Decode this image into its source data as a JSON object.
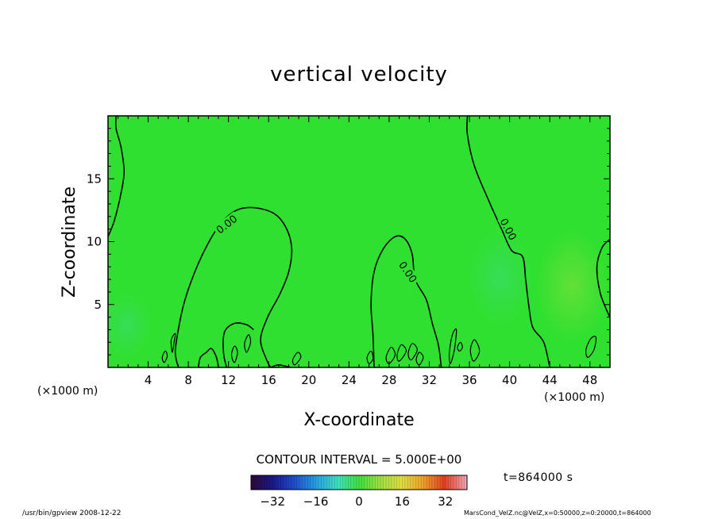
{
  "chart_data": {
    "type": "contour",
    "title": "vertical velocity",
    "xlabel": "X-coordinate",
    "ylabel": "Z-coordinate",
    "x_unit_left": "(×1000 m)",
    "x_unit_right": "(×1000 m)",
    "xlim": [
      0,
      50
    ],
    "ylim": [
      0,
      20
    ],
    "x_ticks": [
      4,
      8,
      12,
      16,
      20,
      24,
      28,
      32,
      36,
      40,
      44,
      48
    ],
    "y_ticks": [
      5,
      10,
      15
    ],
    "contour_interval_text": "CONTOUR INTERVAL = 5.000E+00",
    "contour_label": "0.00",
    "time_label": "t=864000 s",
    "colorbar": {
      "min": -40,
      "max": 40,
      "ticks": [
        -32,
        -16,
        0,
        16,
        32
      ],
      "colors": [
        "#2a0a3a",
        "#1a1a8c",
        "#1e4fd0",
        "#2aa0e0",
        "#40e0c0",
        "#40e040",
        "#a0e040",
        "#e0e040",
        "#f0a030",
        "#e04020",
        "#f0a0b0"
      ]
    },
    "background_color": "#30e030",
    "contour_paths": [
      [
        [
          0.0,
          10.4
        ],
        [
          0.6,
          11.6
        ],
        [
          1.2,
          13.5
        ],
        [
          1.6,
          15.5
        ],
        [
          1.3,
          17.5
        ],
        [
          0.8,
          19.0
        ],
        [
          0.8,
          20.0
        ]
      ],
      [
        [
          7.0,
          0.0
        ],
        [
          6.7,
          1.2
        ],
        [
          7.0,
          3.0
        ],
        [
          7.6,
          5.2
        ],
        [
          8.6,
          7.5
        ],
        [
          9.8,
          9.6
        ],
        [
          11.2,
          11.4
        ],
        [
          12.8,
          12.5
        ],
        [
          14.6,
          12.7
        ],
        [
          16.6,
          12.2
        ],
        [
          17.8,
          11.0
        ],
        [
          18.3,
          9.4
        ],
        [
          18.0,
          7.6
        ],
        [
          17.1,
          5.8
        ],
        [
          15.9,
          4.0
        ],
        [
          15.2,
          2.2
        ],
        [
          15.8,
          0.6
        ],
        [
          16.2,
          0.0
        ]
      ],
      [
        [
          26.5,
          0.0
        ],
        [
          26.4,
          2.5
        ],
        [
          26.2,
          5.0
        ],
        [
          26.5,
          7.6
        ],
        [
          27.4,
          9.4
        ],
        [
          28.6,
          10.4
        ],
        [
          29.6,
          10.2
        ],
        [
          30.3,
          9.0
        ],
        [
          30.6,
          7.0
        ],
        [
          31.7,
          5.4
        ],
        [
          32.3,
          3.5
        ],
        [
          32.9,
          1.8
        ],
        [
          33.2,
          0.0
        ]
      ],
      [
        [
          35.8,
          20.0
        ],
        [
          35.8,
          18.5
        ],
        [
          36.5,
          16.0
        ],
        [
          37.9,
          13.3
        ],
        [
          39.2,
          11.0
        ],
        [
          40.2,
          9.3
        ],
        [
          41.3,
          8.8
        ],
        [
          41.6,
          7.0
        ],
        [
          41.9,
          5.0
        ],
        [
          42.3,
          3.2
        ],
        [
          43.4,
          2.0
        ],
        [
          44.0,
          0.0
        ]
      ],
      [
        [
          50.0,
          10.2
        ],
        [
          49.2,
          9.5
        ],
        [
          48.7,
          8.0
        ],
        [
          49.0,
          6.0
        ],
        [
          49.7,
          4.5
        ],
        [
          50.0,
          4.0
        ]
      ],
      [
        [
          16.2,
          0.0
        ],
        [
          17.0,
          0.2
        ],
        [
          18.2,
          0.0
        ]
      ],
      [
        [
          14.5,
          3.0
        ],
        [
          13.8,
          3.4
        ],
        [
          12.6,
          3.5
        ],
        [
          11.6,
          2.8
        ],
        [
          11.5,
          1.2
        ],
        [
          11.8,
          0.0
        ]
      ],
      [
        [
          9.0,
          0.0
        ],
        [
          9.2,
          0.8
        ],
        [
          9.8,
          1.2
        ],
        [
          10.3,
          1.5
        ],
        [
          10.8,
          0.8
        ],
        [
          11.0,
          0.0
        ]
      ]
    ],
    "contour_loops": [
      [
        [
          47.8,
          0.8
        ],
        [
          48.4,
          1.4
        ],
        [
          48.6,
          2.4
        ],
        [
          48.1,
          2.3
        ],
        [
          47.6,
          1.4
        ]
      ],
      [
        [
          6.4,
          1.2
        ],
        [
          6.6,
          2.1
        ],
        [
          6.7,
          2.7
        ],
        [
          6.3,
          2.2
        ]
      ],
      [
        [
          5.6,
          0.4
        ],
        [
          5.9,
          0.9
        ],
        [
          5.7,
          1.3
        ],
        [
          5.4,
          0.8
        ]
      ],
      [
        [
          13.8,
          1.2
        ],
        [
          14.2,
          2.0
        ],
        [
          14.0,
          2.6
        ],
        [
          13.6,
          1.9
        ]
      ],
      [
        [
          12.6,
          0.4
        ],
        [
          12.9,
          1.2
        ],
        [
          12.6,
          1.7
        ],
        [
          12.3,
          1.0
        ]
      ],
      [
        [
          26.0,
          0.3
        ],
        [
          26.4,
          0.7
        ],
        [
          26.2,
          1.3
        ],
        [
          25.8,
          0.8
        ]
      ],
      [
        [
          28.0,
          0.3
        ],
        [
          28.6,
          1.0
        ],
        [
          28.2,
          1.6
        ],
        [
          27.7,
          0.8
        ]
      ],
      [
        [
          29.0,
          0.5
        ],
        [
          29.7,
          1.3
        ],
        [
          29.2,
          1.8
        ],
        [
          28.8,
          1.0
        ]
      ],
      [
        [
          30.2,
          0.6
        ],
        [
          30.8,
          1.4
        ],
        [
          30.3,
          1.9
        ],
        [
          29.9,
          1.1
        ]
      ],
      [
        [
          18.6,
          0.2
        ],
        [
          19.2,
          0.8
        ],
        [
          18.9,
          1.2
        ],
        [
          18.4,
          0.6
        ]
      ],
      [
        [
          34.1,
          0.3
        ],
        [
          34.5,
          1.4
        ],
        [
          34.7,
          3.0
        ],
        [
          34.3,
          2.6
        ],
        [
          34.0,
          1.2
        ]
      ],
      [
        [
          35.0,
          1.3
        ],
        [
          35.3,
          1.6
        ],
        [
          35.1,
          2.0
        ],
        [
          34.8,
          1.6
        ]
      ],
      [
        [
          36.4,
          0.5
        ],
        [
          37.0,
          1.3
        ],
        [
          36.5,
          2.2
        ],
        [
          36.1,
          1.4
        ]
      ],
      [
        [
          31.0,
          0.2
        ],
        [
          31.4,
          0.8
        ],
        [
          31.0,
          1.2
        ],
        [
          30.7,
          0.6
        ]
      ]
    ],
    "contour_label_positions": [
      [
        11.8,
        11.4,
        -38
      ],
      [
        29.9,
        7.6,
        55
      ],
      [
        39.9,
        11.0,
        62
      ]
    ]
  },
  "footer": {
    "left": "/usr/bin/gpview  2008-12-22",
    "right": "MarsCond_VelZ.nc@VelZ,x=0:50000,z=0:20000,t=864000"
  }
}
